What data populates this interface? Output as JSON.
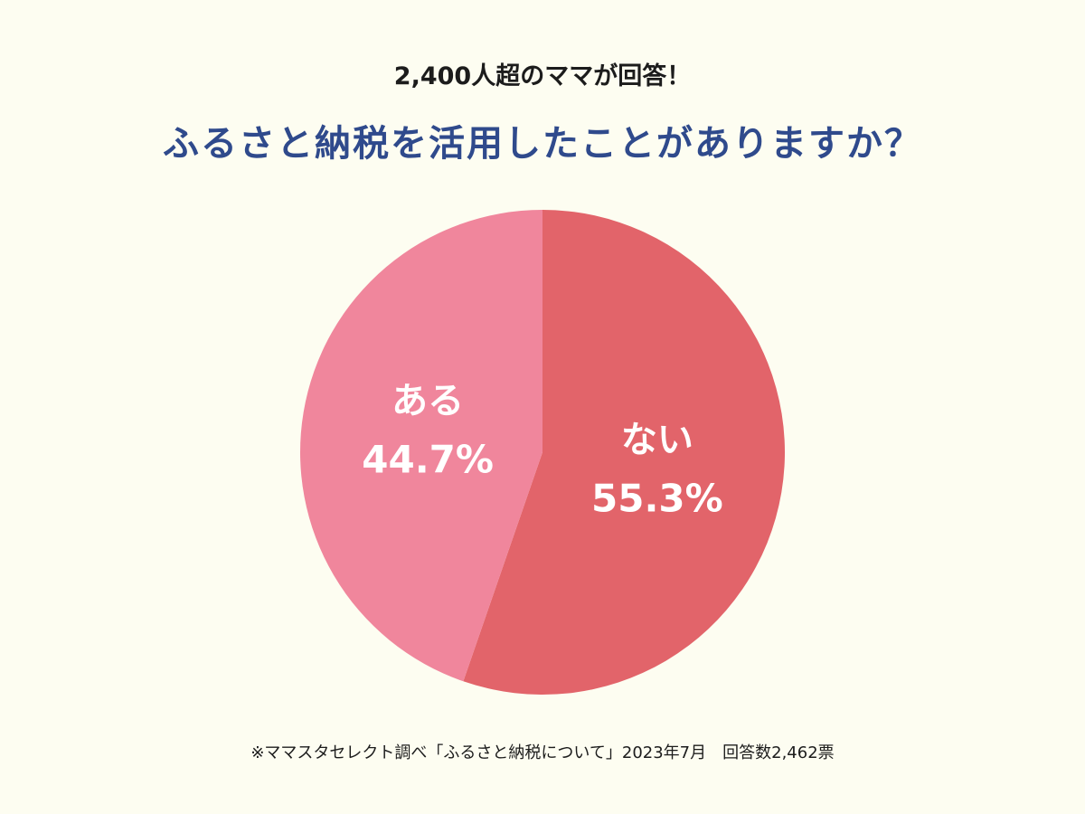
{
  "subtitle": "2,400人超のママが回答！",
  "title": "ふるさと納税を活用したことがありますか？",
  "footnote": "※ママスタセレクト調べ「ふるさと納税について」2023年7月　回答数2,462票",
  "colors": {
    "background": "#fdfdf1",
    "title": "#2f4a8c",
    "slice_no": "#e2646a",
    "slice_yes": "#f0869c"
  },
  "chart_data": {
    "type": "pie",
    "title": "ふるさと納税を活用したことがありますか？",
    "start": "top, clockwise",
    "slices": [
      {
        "label": "ない",
        "value": 55.3,
        "display": "55.3%",
        "color": "#e2646a"
      },
      {
        "label": "ある",
        "value": 44.7,
        "display": "44.7%",
        "color": "#f0869c"
      }
    ]
  }
}
